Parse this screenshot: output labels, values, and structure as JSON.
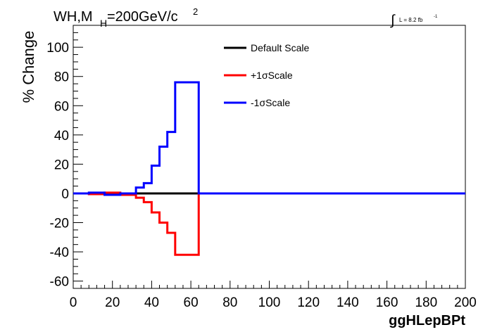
{
  "chart_data": {
    "type": "line",
    "title_main": "WH,M",
    "title_sub": "H",
    "title_rest": "=200GeV/c",
    "title_sup": "2",
    "lumi_text": "L = 8.2 fb",
    "lumi_sup": "-1",
    "ylabel": "% Change",
    "xlabel": "ggHLepBPt",
    "xlim": [
      0,
      200
    ],
    "ylim": [
      -65,
      115
    ],
    "xticks": [
      0,
      20,
      40,
      60,
      80,
      100,
      120,
      140,
      160,
      180,
      200
    ],
    "yticks": [
      -60,
      -40,
      -20,
      0,
      20,
      40,
      60,
      80,
      100
    ],
    "bin_edges": [
      0,
      8,
      16,
      24,
      32,
      36,
      40,
      44,
      48,
      52,
      56,
      60,
      64,
      200
    ],
    "series": [
      {
        "name": "Default Scale",
        "color": "#000000",
        "values": [
          0,
          0,
          0,
          0,
          0,
          0,
          0,
          0,
          0,
          0,
          0,
          0,
          0
        ]
      },
      {
        "name": "+1σScale",
        "color": "#ff0000",
        "values": [
          0,
          -0.5,
          0.5,
          -1,
          -3,
          -6,
          -13,
          -20,
          -27,
          -42,
          -42,
          -42,
          0
        ]
      },
      {
        "name": "-1σScale",
        "color": "#0000ff",
        "values": [
          0,
          0.5,
          -1,
          0,
          4,
          7,
          19,
          32,
          42,
          76,
          76,
          76,
          0
        ]
      }
    ]
  }
}
